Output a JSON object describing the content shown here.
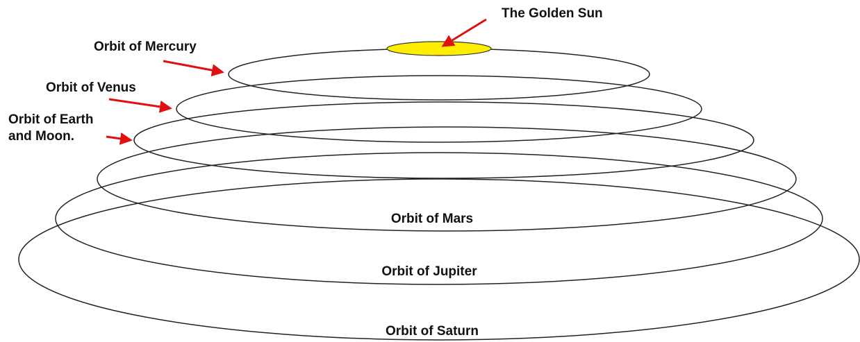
{
  "labels": {
    "sun": "The Golden Sun",
    "mercury": "Orbit of Mercury",
    "venus": "Orbit of Venus",
    "earth": [
      "Orbit of Earth",
      "and Moon."
    ],
    "mars": "Orbit of Mars",
    "jupiter": "Orbit of Jupiter",
    "saturn": "Orbit of Saturn"
  }
}
